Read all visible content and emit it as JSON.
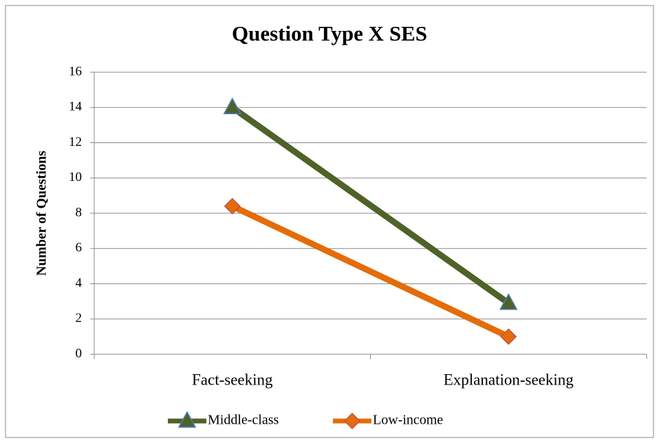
{
  "chart_data": {
    "type": "line",
    "title": "Question Type X SES",
    "ylabel": "Number of Questions",
    "categories": [
      "Fact-seeking",
      "Explanation-seeking"
    ],
    "series": [
      {
        "name": "Middle-class",
        "color": "#4f6228",
        "values": [
          14,
          2.9
        ]
      },
      {
        "name": "Low-income",
        "color": "#e46c0a",
        "values": [
          8.4,
          1.0
        ]
      }
    ],
    "ylim": [
      0,
      16
    ],
    "yticks": [
      0,
      2,
      4,
      6,
      8,
      10,
      12,
      14,
      16
    ],
    "grid": true,
    "legend": "bottom"
  }
}
